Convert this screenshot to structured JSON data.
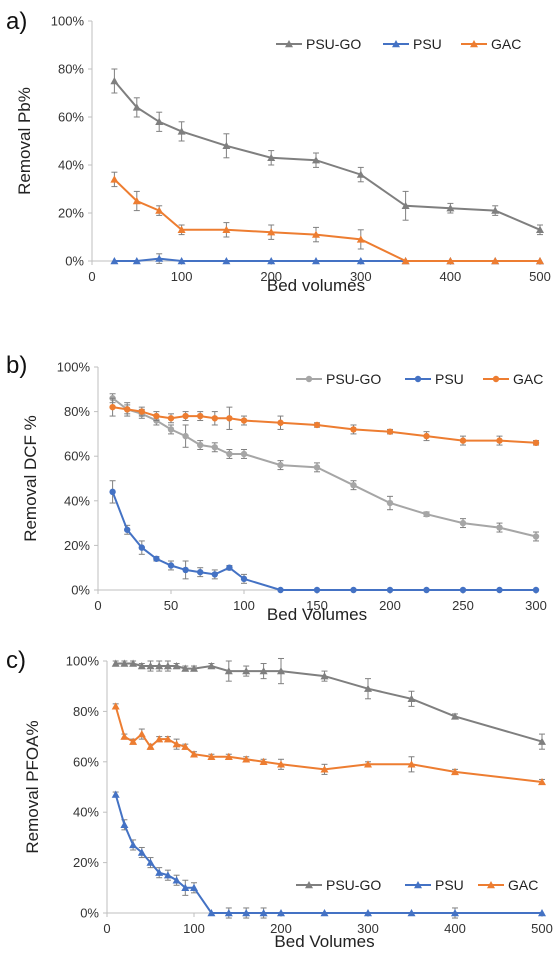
{
  "figure": {
    "colors": {
      "PSU-GO_a": "#7f7f7f",
      "PSU-GO_b": "#a6a6a6",
      "PSU": "#4472c4",
      "GAC": "#ed7d31"
    }
  },
  "chart_data": [
    {
      "panel_label": "a)",
      "type": "line",
      "xlabel": "Bed volumes",
      "ylabel": "Removal Pb%",
      "xlim": [
        0,
        500
      ],
      "ylim": [
        0,
        100
      ],
      "xticks": [
        0,
        100,
        200,
        300,
        400,
        500
      ],
      "yticks": [
        0,
        20,
        40,
        60,
        80,
        100
      ],
      "ytick_format": "percent",
      "grid": false,
      "legend_position": "top-right",
      "series": [
        {
          "name": "PSU-GO",
          "color": "#7f7f7f",
          "marker": "triangle",
          "x": [
            25,
            50,
            75,
            100,
            150,
            200,
            250,
            300,
            350,
            400,
            450,
            500
          ],
          "y": [
            75,
            64,
            58,
            54,
            48,
            43,
            42,
            36,
            23,
            22,
            21,
            13
          ],
          "err": [
            5,
            4,
            4,
            4,
            5,
            3,
            3,
            3,
            6,
            2,
            2,
            2
          ]
        },
        {
          "name": "PSU",
          "color": "#4472c4",
          "marker": "triangle",
          "x": [
            25,
            50,
            75,
            100,
            150,
            200,
            250,
            300,
            350,
            400,
            450,
            500
          ],
          "y": [
            0,
            0,
            1,
            0,
            0,
            0,
            0,
            0,
            0,
            0,
            0,
            0
          ],
          "err": [
            0,
            0,
            2,
            0,
            0,
            0,
            0,
            0,
            0,
            0,
            0,
            0
          ]
        },
        {
          "name": "GAC",
          "color": "#ed7d31",
          "marker": "triangle",
          "x": [
            25,
            50,
            75,
            100,
            150,
            200,
            250,
            300,
            350,
            400,
            450,
            500
          ],
          "y": [
            34,
            25,
            21,
            13,
            13,
            12,
            11,
            9,
            0,
            0,
            0,
            0
          ],
          "err": [
            3,
            4,
            2,
            2,
            3,
            3,
            3,
            4,
            0,
            0,
            0,
            0
          ]
        }
      ]
    },
    {
      "panel_label": "b)",
      "type": "line",
      "xlabel": "Bed Volumes",
      "ylabel": "Removal DCF %",
      "xlim": [
        0,
        300
      ],
      "ylim": [
        0,
        100
      ],
      "xticks": [
        0,
        50,
        100,
        150,
        200,
        250,
        300
      ],
      "yticks": [
        0,
        20,
        40,
        60,
        80,
        100
      ],
      "ytick_format": "percent",
      "grid": false,
      "legend_position": "top-right",
      "series": [
        {
          "name": "PSU-GO",
          "color": "#a6a6a6",
          "marker": "circle",
          "x": [
            10,
            20,
            30,
            40,
            50,
            60,
            70,
            80,
            90,
            100,
            125,
            150,
            175,
            200,
            225,
            250,
            275,
            300
          ],
          "y": [
            86,
            81,
            79,
            76,
            72,
            69,
            65,
            64,
            61,
            61,
            56,
            55,
            47,
            39,
            34,
            30,
            28,
            24
          ],
          "err": [
            2,
            2,
            2,
            2,
            2,
            5,
            2,
            2,
            2,
            2,
            2,
            2,
            2,
            3,
            1,
            2,
            2,
            2
          ]
        },
        {
          "name": "PSU",
          "color": "#4472c4",
          "marker": "circle",
          "x": [
            10,
            20,
            30,
            40,
            50,
            60,
            70,
            80,
            90,
            100,
            125,
            150,
            175,
            200,
            225,
            250,
            275,
            300
          ],
          "y": [
            44,
            27,
            19,
            14,
            11,
            9,
            8,
            7,
            10,
            5,
            0,
            0,
            0,
            0,
            0,
            0,
            0,
            0
          ],
          "err": [
            5,
            2,
            3,
            1,
            2,
            4,
            2,
            2,
            1,
            2,
            0,
            0,
            0,
            0,
            0,
            0,
            0,
            0
          ]
        },
        {
          "name": "GAC",
          "color": "#ed7d31",
          "marker": "circle",
          "x": [
            10,
            20,
            30,
            40,
            50,
            60,
            70,
            80,
            90,
            100,
            125,
            150,
            175,
            200,
            225,
            250,
            275,
            300
          ],
          "y": [
            82,
            81,
            80,
            78,
            77,
            78,
            78,
            77,
            77,
            76,
            75,
            74,
            72,
            71,
            69,
            67,
            67,
            66
          ],
          "err": [
            4,
            3,
            2,
            2,
            2,
            2,
            2,
            3,
            5,
            2,
            3,
            1,
            2,
            1,
            2,
            2,
            2,
            1
          ]
        }
      ]
    },
    {
      "panel_label": "c)",
      "type": "line",
      "xlabel": "Bed Volumes",
      "ylabel": "Removal PFOA%",
      "xlim": [
        0,
        500
      ],
      "ylim": [
        0,
        100
      ],
      "xticks": [
        0,
        100,
        200,
        300,
        400,
        500
      ],
      "yticks": [
        0,
        20,
        40,
        60,
        80,
        100
      ],
      "ytick_format": "percent",
      "grid": false,
      "legend_position": "bottom-right",
      "series": [
        {
          "name": "PSU-GO",
          "color": "#7f7f7f",
          "marker": "triangle",
          "x": [
            10,
            20,
            30,
            40,
            50,
            60,
            70,
            80,
            90,
            100,
            120,
            140,
            160,
            180,
            200,
            250,
            300,
            350,
            400,
            500
          ],
          "y": [
            99,
            99,
            99,
            98,
            98,
            98,
            98,
            98,
            97,
            97,
            98,
            96,
            96,
            96,
            96,
            94,
            89,
            85,
            78,
            68
          ],
          "err": [
            1,
            1,
            1,
            1,
            2,
            2,
            2,
            1,
            1,
            1,
            1,
            4,
            2,
            3,
            5,
            2,
            4,
            3,
            1,
            3
          ]
        },
        {
          "name": "PSU",
          "color": "#4472c4",
          "marker": "triangle",
          "x": [
            10,
            20,
            30,
            40,
            50,
            60,
            70,
            80,
            90,
            100,
            120,
            140,
            160,
            180,
            200,
            250,
            300,
            350,
            400,
            500
          ],
          "y": [
            47,
            35,
            27,
            24,
            20,
            16,
            15,
            13,
            10,
            10,
            0,
            0,
            0,
            0,
            0,
            0,
            0,
            0,
            0,
            0
          ],
          "err": [
            1,
            2,
            2,
            2,
            2,
            2,
            2,
            2,
            3,
            2,
            0,
            2,
            2,
            2,
            0,
            0,
            0,
            0,
            2,
            0
          ]
        },
        {
          "name": "GAC",
          "color": "#ed7d31",
          "marker": "triangle",
          "x": [
            10,
            20,
            30,
            40,
            50,
            60,
            70,
            80,
            90,
            100,
            120,
            140,
            160,
            180,
            200,
            250,
            300,
            350,
            400,
            500
          ],
          "y": [
            82,
            70,
            68,
            71,
            66,
            69,
            69,
            67,
            66,
            63,
            62,
            62,
            61,
            60,
            59,
            57,
            59,
            59,
            56,
            52
          ],
          "err": [
            1,
            1,
            1,
            2,
            1,
            1,
            1,
            2,
            1,
            1,
            1,
            1,
            1,
            1,
            2,
            2,
            1,
            3,
            1,
            1
          ]
        }
      ]
    }
  ]
}
